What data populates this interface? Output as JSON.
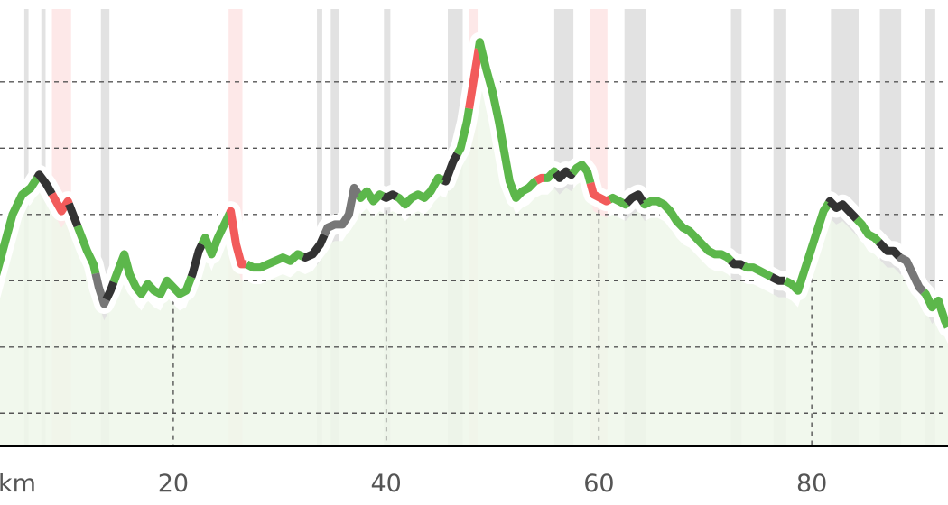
{
  "chart_data": {
    "type": "line",
    "title": "",
    "xlabel": "",
    "ylabel": "",
    "x_unit_label": "km",
    "x_ticks": [
      {
        "value": 20,
        "label": "20"
      },
      {
        "value": 40,
        "label": "40"
      },
      {
        "value": 60,
        "label": "60"
      },
      {
        "value": 80,
        "label": "80"
      }
    ],
    "xlim": [
      2.7,
      92.8
    ],
    "ylim": [
      0,
      6.6
    ],
    "y_grid_levels": [
      0.5,
      1.5,
      2.5,
      3.5,
      4.5,
      5.5
    ],
    "grid": true,
    "colors": {
      "green": "#5cb74b",
      "black": "#333333",
      "gray": "#777777",
      "red": "#f25b5b",
      "fill_green": "#eef7ea",
      "band_gray": "#e2e2e2",
      "band_red": "#fde8e8",
      "halo": "#ffffff",
      "grid": "#555555",
      "axis": "#000000"
    },
    "points": [
      [
        2.7,
        2.2
      ],
      [
        3.8,
        2.85
      ],
      [
        4.9,
        3.5
      ],
      [
        5.8,
        3.8
      ],
      [
        6.6,
        3.9
      ],
      [
        7.4,
        4.1
      ],
      [
        8.1,
        3.95
      ],
      [
        8.8,
        3.75
      ],
      [
        9.5,
        3.55
      ],
      [
        10.1,
        3.7
      ],
      [
        10.7,
        3.45
      ],
      [
        11.3,
        3.2
      ],
      [
        11.9,
        2.95
      ],
      [
        12.5,
        2.75
      ],
      [
        13.0,
        2.4
      ],
      [
        13.5,
        2.15
      ],
      [
        14.1,
        2.35
      ],
      [
        14.8,
        2.65
      ],
      [
        15.4,
        2.9
      ],
      [
        15.9,
        2.6
      ],
      [
        16.5,
        2.4
      ],
      [
        17.0,
        2.3
      ],
      [
        17.6,
        2.45
      ],
      [
        18.2,
        2.35
      ],
      [
        18.8,
        2.3
      ],
      [
        19.4,
        2.5
      ],
      [
        20.0,
        2.4
      ],
      [
        20.6,
        2.3
      ],
      [
        21.2,
        2.35
      ],
      [
        21.8,
        2.6
      ],
      [
        22.4,
        2.95
      ],
      [
        23.0,
        3.15
      ],
      [
        23.6,
        2.9
      ],
      [
        24.2,
        3.15
      ],
      [
        24.8,
        3.35
      ],
      [
        25.4,
        3.55
      ],
      [
        25.9,
        3.05
      ],
      [
        26.4,
        2.75
      ],
      [
        26.9,
        2.75
      ],
      [
        27.5,
        2.7
      ],
      [
        28.2,
        2.7
      ],
      [
        28.9,
        2.75
      ],
      [
        29.6,
        2.8
      ],
      [
        30.3,
        2.85
      ],
      [
        31.0,
        2.8
      ],
      [
        31.7,
        2.9
      ],
      [
        32.4,
        2.85
      ],
      [
        33.1,
        2.9
      ],
      [
        33.8,
        3.05
      ],
      [
        34.5,
        3.3
      ],
      [
        35.2,
        3.35
      ],
      [
        35.9,
        3.35
      ],
      [
        36.5,
        3.5
      ],
      [
        37.0,
        3.9
      ],
      [
        37.6,
        3.75
      ],
      [
        38.2,
        3.85
      ],
      [
        38.8,
        3.7
      ],
      [
        39.4,
        3.8
      ],
      [
        40.0,
        3.75
      ],
      [
        40.6,
        3.8
      ],
      [
        41.2,
        3.75
      ],
      [
        41.8,
        3.65
      ],
      [
        42.4,
        3.75
      ],
      [
        43.0,
        3.8
      ],
      [
        43.6,
        3.75
      ],
      [
        44.2,
        3.85
      ],
      [
        44.9,
        4.05
      ],
      [
        45.6,
        4.0
      ],
      [
        46.3,
        4.3
      ],
      [
        47.0,
        4.5
      ],
      [
        47.6,
        4.9
      ],
      [
        48.2,
        5.5
      ],
      [
        48.8,
        6.1
      ],
      [
        49.4,
        5.7
      ],
      [
        50.0,
        5.35
      ],
      [
        50.6,
        4.9
      ],
      [
        51.1,
        4.45
      ],
      [
        51.6,
        4.0
      ],
      [
        52.2,
        3.75
      ],
      [
        52.8,
        3.85
      ],
      [
        53.4,
        3.9
      ],
      [
        54.0,
        4.0
      ],
      [
        54.6,
        4.05
      ],
      [
        55.2,
        4.05
      ],
      [
        55.8,
        4.15
      ],
      [
        56.3,
        4.05
      ],
      [
        56.9,
        4.15
      ],
      [
        57.4,
        4.1
      ],
      [
        57.9,
        4.2
      ],
      [
        58.4,
        4.25
      ],
      [
        58.9,
        4.15
      ],
      [
        59.5,
        3.8
      ],
      [
        60.1,
        3.75
      ],
      [
        60.7,
        3.7
      ],
      [
        61.3,
        3.75
      ],
      [
        61.9,
        3.7
      ],
      [
        62.5,
        3.65
      ],
      [
        63.1,
        3.75
      ],
      [
        63.7,
        3.8
      ],
      [
        64.3,
        3.65
      ],
      [
        64.9,
        3.7
      ],
      [
        65.5,
        3.7
      ],
      [
        66.1,
        3.65
      ],
      [
        66.7,
        3.55
      ],
      [
        67.3,
        3.4
      ],
      [
        67.9,
        3.3
      ],
      [
        68.5,
        3.25
      ],
      [
        69.1,
        3.15
      ],
      [
        69.7,
        3.05
      ],
      [
        70.3,
        2.95
      ],
      [
        70.9,
        2.9
      ],
      [
        71.5,
        2.9
      ],
      [
        72.1,
        2.85
      ],
      [
        72.7,
        2.75
      ],
      [
        73.3,
        2.75
      ],
      [
        73.9,
        2.7
      ],
      [
        74.5,
        2.7
      ],
      [
        75.1,
        2.65
      ],
      [
        75.7,
        2.6
      ],
      [
        76.3,
        2.55
      ],
      [
        76.9,
        2.5
      ],
      [
        77.5,
        2.5
      ],
      [
        78.1,
        2.45
      ],
      [
        78.7,
        2.35
      ],
      [
        79.3,
        2.65
      ],
      [
        79.9,
        2.95
      ],
      [
        80.5,
        3.25
      ],
      [
        81.1,
        3.55
      ],
      [
        81.7,
        3.7
      ],
      [
        82.3,
        3.6
      ],
      [
        82.9,
        3.65
      ],
      [
        83.5,
        3.55
      ],
      [
        84.1,
        3.45
      ],
      [
        84.7,
        3.35
      ],
      [
        85.3,
        3.2
      ],
      [
        85.9,
        3.15
      ],
      [
        86.5,
        3.05
      ],
      [
        87.1,
        2.95
      ],
      [
        87.7,
        2.95
      ],
      [
        88.3,
        2.85
      ],
      [
        88.9,
        2.8
      ],
      [
        89.5,
        2.6
      ],
      [
        90.1,
        2.4
      ],
      [
        90.7,
        2.3
      ],
      [
        91.3,
        2.1
      ],
      [
        91.9,
        2.2
      ],
      [
        92.5,
        1.9
      ],
      [
        92.8,
        1.8
      ]
    ],
    "segments": [
      {
        "from": 2.7,
        "to": 7.2,
        "color": "green"
      },
      {
        "from": 7.2,
        "to": 8.6,
        "color": "black"
      },
      {
        "from": 8.6,
        "to": 10.2,
        "color": "red"
      },
      {
        "from": 10.2,
        "to": 11.0,
        "color": "black"
      },
      {
        "from": 11.0,
        "to": 12.7,
        "color": "green"
      },
      {
        "from": 12.7,
        "to": 13.7,
        "color": "gray"
      },
      {
        "from": 13.7,
        "to": 14.4,
        "color": "black"
      },
      {
        "from": 14.4,
        "to": 21.7,
        "color": "green"
      },
      {
        "from": 21.7,
        "to": 22.7,
        "color": "black"
      },
      {
        "from": 22.7,
        "to": 25.3,
        "color": "green"
      },
      {
        "from": 25.3,
        "to": 26.9,
        "color": "red"
      },
      {
        "from": 26.9,
        "to": 32.2,
        "color": "green"
      },
      {
        "from": 32.2,
        "to": 34.2,
        "color": "black"
      },
      {
        "from": 34.2,
        "to": 37.5,
        "color": "gray"
      },
      {
        "from": 37.5,
        "to": 39.7,
        "color": "green"
      },
      {
        "from": 39.7,
        "to": 41.0,
        "color": "black"
      },
      {
        "from": 41.0,
        "to": 45.4,
        "color": "green"
      },
      {
        "from": 45.4,
        "to": 46.7,
        "color": "black"
      },
      {
        "from": 46.7,
        "to": 47.8,
        "color": "green"
      },
      {
        "from": 47.8,
        "to": 48.7,
        "color": "red"
      },
      {
        "from": 48.7,
        "to": 54.1,
        "color": "green"
      },
      {
        "from": 54.1,
        "to": 54.8,
        "color": "red"
      },
      {
        "from": 54.8,
        "to": 55.9,
        "color": "green"
      },
      {
        "from": 55.9,
        "to": 57.5,
        "color": "black"
      },
      {
        "from": 57.5,
        "to": 59.2,
        "color": "green"
      },
      {
        "from": 59.2,
        "to": 61.0,
        "color": "red"
      },
      {
        "from": 61.0,
        "to": 62.6,
        "color": "green"
      },
      {
        "from": 62.6,
        "to": 64.2,
        "color": "black"
      },
      {
        "from": 64.2,
        "to": 72.4,
        "color": "green"
      },
      {
        "from": 72.4,
        "to": 73.6,
        "color": "black"
      },
      {
        "from": 73.6,
        "to": 76.2,
        "color": "green"
      },
      {
        "from": 76.2,
        "to": 77.5,
        "color": "black"
      },
      {
        "from": 77.5,
        "to": 81.6,
        "color": "green"
      },
      {
        "from": 81.6,
        "to": 84.2,
        "color": "black"
      },
      {
        "from": 84.2,
        "to": 86.3,
        "color": "green"
      },
      {
        "from": 86.3,
        "to": 88.2,
        "color": "black"
      },
      {
        "from": 88.2,
        "to": 90.5,
        "color": "gray"
      },
      {
        "from": 90.5,
        "to": 92.8,
        "color": "green"
      }
    ],
    "bands": [
      {
        "from": 6.0,
        "to": 6.4,
        "color": "gray"
      },
      {
        "from": 7.6,
        "to": 8.0,
        "color": "gray"
      },
      {
        "from": 8.6,
        "to": 10.4,
        "color": "red"
      },
      {
        "from": 13.2,
        "to": 14.0,
        "color": "gray"
      },
      {
        "from": 25.2,
        "to": 26.5,
        "color": "red"
      },
      {
        "from": 33.5,
        "to": 34.0,
        "color": "gray"
      },
      {
        "from": 34.8,
        "to": 35.6,
        "color": "gray"
      },
      {
        "from": 39.8,
        "to": 40.4,
        "color": "gray"
      },
      {
        "from": 45.8,
        "to": 47.2,
        "color": "gray"
      },
      {
        "from": 47.8,
        "to": 48.6,
        "color": "red"
      },
      {
        "from": 55.8,
        "to": 57.6,
        "color": "gray"
      },
      {
        "from": 59.2,
        "to": 60.8,
        "color": "red"
      },
      {
        "from": 62.4,
        "to": 64.4,
        "color": "gray"
      },
      {
        "from": 72.4,
        "to": 73.4,
        "color": "gray"
      },
      {
        "from": 76.4,
        "to": 77.6,
        "color": "gray"
      },
      {
        "from": 81.8,
        "to": 84.4,
        "color": "gray"
      },
      {
        "from": 86.4,
        "to": 88.4,
        "color": "gray"
      },
      {
        "from": 90.6,
        "to": 91.6,
        "color": "gray"
      }
    ],
    "x_markers": [
      20,
      40,
      60,
      80
    ]
  }
}
